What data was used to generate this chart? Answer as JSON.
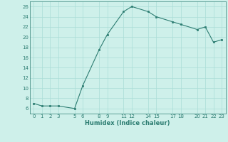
{
  "x": [
    0,
    1,
    2,
    3,
    5,
    6,
    8,
    9,
    11,
    12,
    14,
    15,
    17,
    18,
    20,
    21,
    22,
    23
  ],
  "y": [
    7,
    6.5,
    6.5,
    6.5,
    6,
    10.5,
    17.5,
    20.5,
    25,
    26,
    25,
    24,
    23,
    22.5,
    21.5,
    22,
    19,
    19.5
  ],
  "xticks": [
    0,
    1,
    2,
    3,
    5,
    6,
    8,
    9,
    11,
    12,
    14,
    15,
    17,
    18,
    20,
    21,
    22,
    23
  ],
  "xtick_labels": [
    "0",
    "1",
    "2",
    "3",
    "5",
    "6",
    "8",
    "9",
    "11",
    "12",
    "14",
    "15",
    "17",
    "18",
    "20",
    "21",
    "22",
    "23"
  ],
  "yticks": [
    6,
    8,
    10,
    12,
    14,
    16,
    18,
    20,
    22,
    24,
    26
  ],
  "ytick_labels": [
    "6",
    "8",
    "10",
    "12",
    "14",
    "16",
    "18",
    "20",
    "22",
    "24",
    "26"
  ],
  "ylim": [
    5.0,
    27.0
  ],
  "xlim": [
    -0.5,
    23.5
  ],
  "xlabel": "Humidex (Indice chaleur)",
  "line_color": "#2d7d72",
  "marker_color": "#2d7d72",
  "bg_color": "#cef0ea",
  "grid_color": "#aaddd6",
  "title": ""
}
